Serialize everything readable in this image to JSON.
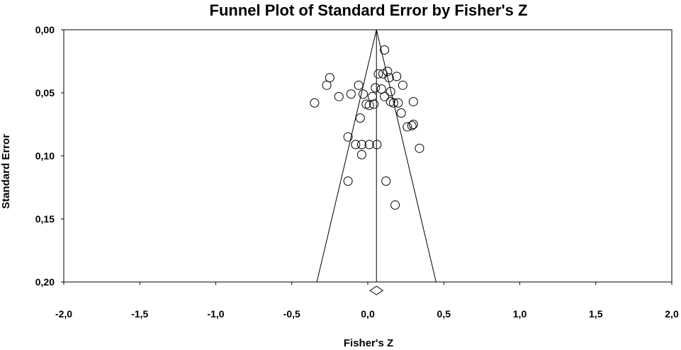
{
  "chart_data": {
    "type": "scatter",
    "title": "Funnel Plot of Standard Error by Fisher's Z",
    "xlabel": "Fisher's Z",
    "ylabel": "Standard Error",
    "xlim": [
      -2.0,
      2.0
    ],
    "ylim": [
      0.0,
      0.2
    ],
    "y_reversed": true,
    "x_ticks": [
      -2.0,
      -1.5,
      -1.0,
      -0.5,
      0.0,
      0.5,
      1.0,
      1.5,
      2.0
    ],
    "x_tick_labels": [
      "-2,0",
      "-1,5",
      "-1,0",
      "-0,5",
      "0,0",
      "0,5",
      "1,0",
      "1,5",
      "2,0"
    ],
    "y_ticks": [
      0.0,
      0.05,
      0.1,
      0.15,
      0.2
    ],
    "y_tick_labels": [
      "0,00",
      "0,05",
      "0,10",
      "0,15",
      "0,20"
    ],
    "pooled_effect": 0.057,
    "funnel_bounds_at_max_se": [
      -0.335,
      0.449
    ],
    "summary_marker": "diamond",
    "grid": false,
    "legend": "none",
    "points": [
      {
        "x": 0.11,
        "y": 0.016
      },
      {
        "x": 0.07,
        "y": 0.035
      },
      {
        "x": 0.1,
        "y": 0.035
      },
      {
        "x": 0.13,
        "y": 0.033
      },
      {
        "x": 0.14,
        "y": 0.038
      },
      {
        "x": 0.19,
        "y": 0.037
      },
      {
        "x": -0.25,
        "y": 0.038
      },
      {
        "x": -0.27,
        "y": 0.044
      },
      {
        "x": 0.23,
        "y": 0.044
      },
      {
        "x": -0.06,
        "y": 0.044
      },
      {
        "x": 0.05,
        "y": 0.046
      },
      {
        "x": 0.09,
        "y": 0.047
      },
      {
        "x": 0.15,
        "y": 0.049
      },
      {
        "x": -0.11,
        "y": 0.051
      },
      {
        "x": -0.19,
        "y": 0.053
      },
      {
        "x": -0.03,
        "y": 0.051
      },
      {
        "x": 0.03,
        "y": 0.053
      },
      {
        "x": 0.11,
        "y": 0.053
      },
      {
        "x": 0.15,
        "y": 0.057
      },
      {
        "x": 0.17,
        "y": 0.058
      },
      {
        "x": 0.3,
        "y": 0.057
      },
      {
        "x": -0.35,
        "y": 0.058
      },
      {
        "x": -0.01,
        "y": 0.059
      },
      {
        "x": 0.01,
        "y": 0.06
      },
      {
        "x": 0.04,
        "y": 0.059
      },
      {
        "x": 0.2,
        "y": 0.058
      },
      {
        "x": 0.22,
        "y": 0.066
      },
      {
        "x": -0.05,
        "y": 0.07
      },
      {
        "x": 0.3,
        "y": 0.075
      },
      {
        "x": 0.26,
        "y": 0.077
      },
      {
        "x": 0.29,
        "y": 0.076
      },
      {
        "x": -0.13,
        "y": 0.085
      },
      {
        "x": -0.08,
        "y": 0.091
      },
      {
        "x": -0.04,
        "y": 0.091
      },
      {
        "x": 0.01,
        "y": 0.091
      },
      {
        "x": 0.06,
        "y": 0.091
      },
      {
        "x": 0.34,
        "y": 0.094
      },
      {
        "x": -0.04,
        "y": 0.099
      },
      {
        "x": -0.13,
        "y": 0.12
      },
      {
        "x": 0.12,
        "y": 0.12
      },
      {
        "x": 0.18,
        "y": 0.139
      }
    ]
  }
}
